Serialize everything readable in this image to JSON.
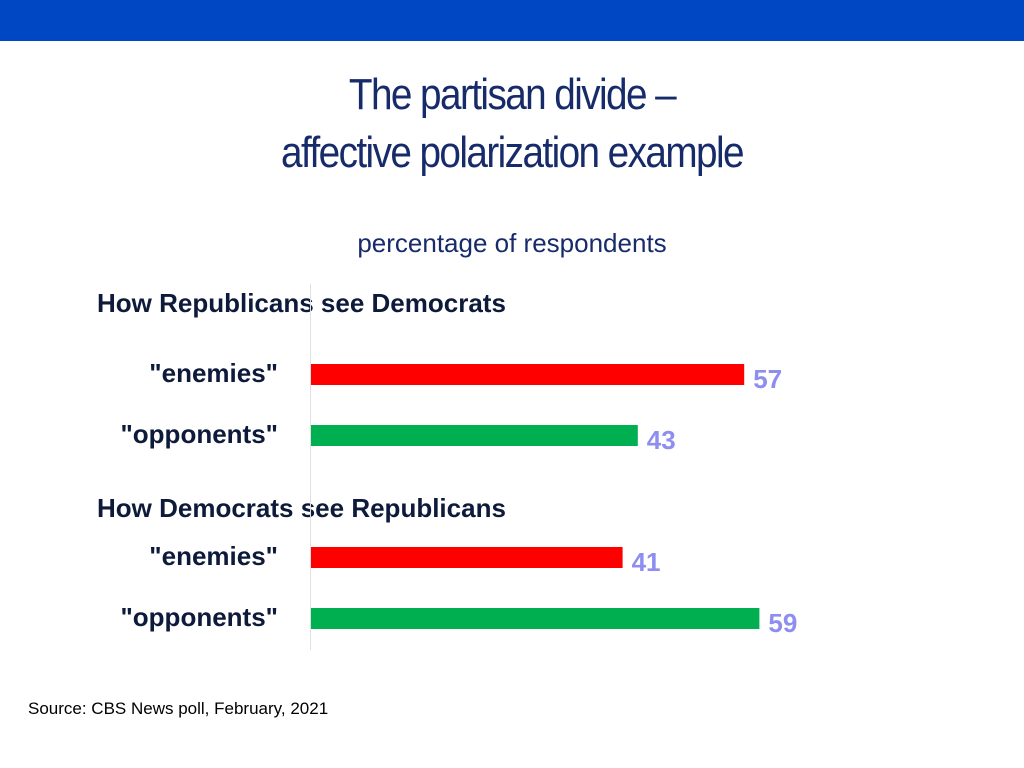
{
  "colors": {
    "header_bar": "#0047c3",
    "title": "#172b6b",
    "enemies_bar": "#ff0000",
    "opponents_bar": "#00b050",
    "value_label": "#8e8ef0"
  },
  "title_line1": "The partisan divide –",
  "title_line2": "affective polarization example",
  "subtitle": "percentage of respondents",
  "source": "Source: CBS News poll, February, 2021",
  "chart_data": {
    "type": "bar",
    "orientation": "horizontal",
    "groups": [
      {
        "heading": "How Republicans see Democrats",
        "bars": [
          {
            "label": "\"enemies\"",
            "value": 57,
            "color": "#ff0000"
          },
          {
            "label": "\"opponents\"",
            "value": 43,
            "color": "#00b050"
          }
        ]
      },
      {
        "heading": "How Democrats see Republicans",
        "bars": [
          {
            "label": "\"enemies\"",
            "value": 41,
            "color": "#ff0000"
          },
          {
            "label": "\"opponents\"",
            "value": 59,
            "color": "#00b050"
          }
        ]
      }
    ],
    "xlim": [
      0,
      100
    ],
    "grid": false,
    "legend": "none"
  }
}
